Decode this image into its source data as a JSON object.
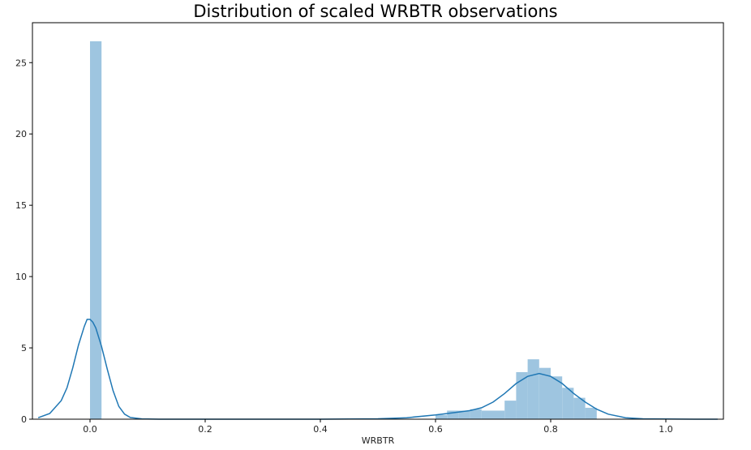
{
  "chart_data": {
    "type": "bar",
    "title": "Distribution of scaled WRBTR observations",
    "xlabel": "WRBTR",
    "ylabel": "",
    "xlim": [
      -0.1,
      1.1
    ],
    "ylim": [
      0,
      27.8
    ],
    "xticks": [
      0.0,
      0.2,
      0.4,
      0.6,
      0.8,
      1.0
    ],
    "xtick_labels": [
      "0.0",
      "0.2",
      "0.4",
      "0.6",
      "0.8",
      "1.0"
    ],
    "yticks": [
      0,
      5,
      10,
      15,
      20,
      25
    ],
    "ytick_labels": [
      "0",
      "5",
      "10",
      "15",
      "20",
      "25"
    ],
    "grid": false,
    "colors": {
      "histogram": "#9ec5e0",
      "kde": "#1f77b4"
    },
    "histogram": {
      "bin_edges": [
        0.0,
        0.02,
        0.6,
        0.62,
        0.64,
        0.66,
        0.68,
        0.7,
        0.72,
        0.74,
        0.76,
        0.78,
        0.8,
        0.82,
        0.84,
        0.86,
        0.88
      ],
      "heights": [
        26.5,
        0,
        0.3,
        0.6,
        0.6,
        0.7,
        0.6,
        0.6,
        1.3,
        3.3,
        4.2,
        3.6,
        3.0,
        2.2,
        1.5,
        0.8
      ]
    },
    "kde": {
      "x": [
        -0.09,
        -0.07,
        -0.05,
        -0.04,
        -0.03,
        -0.02,
        -0.01,
        -0.005,
        0.0,
        0.005,
        0.01,
        0.02,
        0.03,
        0.04,
        0.05,
        0.06,
        0.07,
        0.09,
        0.12,
        0.2,
        0.4,
        0.5,
        0.55,
        0.6,
        0.63,
        0.66,
        0.68,
        0.7,
        0.72,
        0.74,
        0.76,
        0.78,
        0.8,
        0.82,
        0.84,
        0.86,
        0.88,
        0.9,
        0.93,
        0.96,
        1.0,
        1.05,
        1.09
      ],
      "y": [
        0.1,
        0.4,
        1.3,
        2.2,
        3.6,
        5.2,
        6.5,
        7.0,
        7.0,
        6.8,
        6.4,
        5.1,
        3.5,
        2.0,
        0.9,
        0.35,
        0.12,
        0.02,
        0.0,
        0.0,
        0.0,
        0.03,
        0.1,
        0.3,
        0.45,
        0.6,
        0.8,
        1.2,
        1.8,
        2.5,
        3.0,
        3.2,
        3.0,
        2.5,
        1.8,
        1.2,
        0.7,
        0.35,
        0.1,
        0.03,
        0.01,
        0.0,
        0.0
      ]
    }
  }
}
